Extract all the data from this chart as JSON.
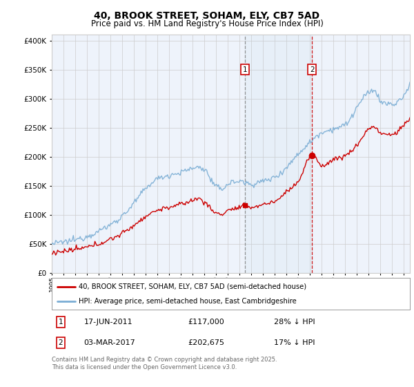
{
  "title": "40, BROOK STREET, SOHAM, ELY, CB7 5AD",
  "subtitle": "Price paid vs. HM Land Registry's House Price Index (HPI)",
  "legend_line1": "40, BROOK STREET, SOHAM, ELY, CB7 5AD (semi-detached house)",
  "legend_line2": "HPI: Average price, semi-detached house, East Cambridgeshire",
  "footer": "Contains HM Land Registry data © Crown copyright and database right 2025.\nThis data is licensed under the Open Government Licence v3.0.",
  "annotation1": {
    "label": "1",
    "date": "17-JUN-2011",
    "price": "£117,000",
    "hpi": "28% ↓ HPI",
    "year": 2011.46
  },
  "annotation2": {
    "label": "2",
    "date": "03-MAR-2017",
    "price": "£202,675",
    "hpi": "17% ↓ HPI",
    "year": 2017.17
  },
  "price_paid_color": "#cc0000",
  "hpi_color": "#7aadd4",
  "background_color": "#eef3fb",
  "ylim": [
    0,
    410000
  ],
  "xlim_start": 1995,
  "xlim_end": 2025.5
}
